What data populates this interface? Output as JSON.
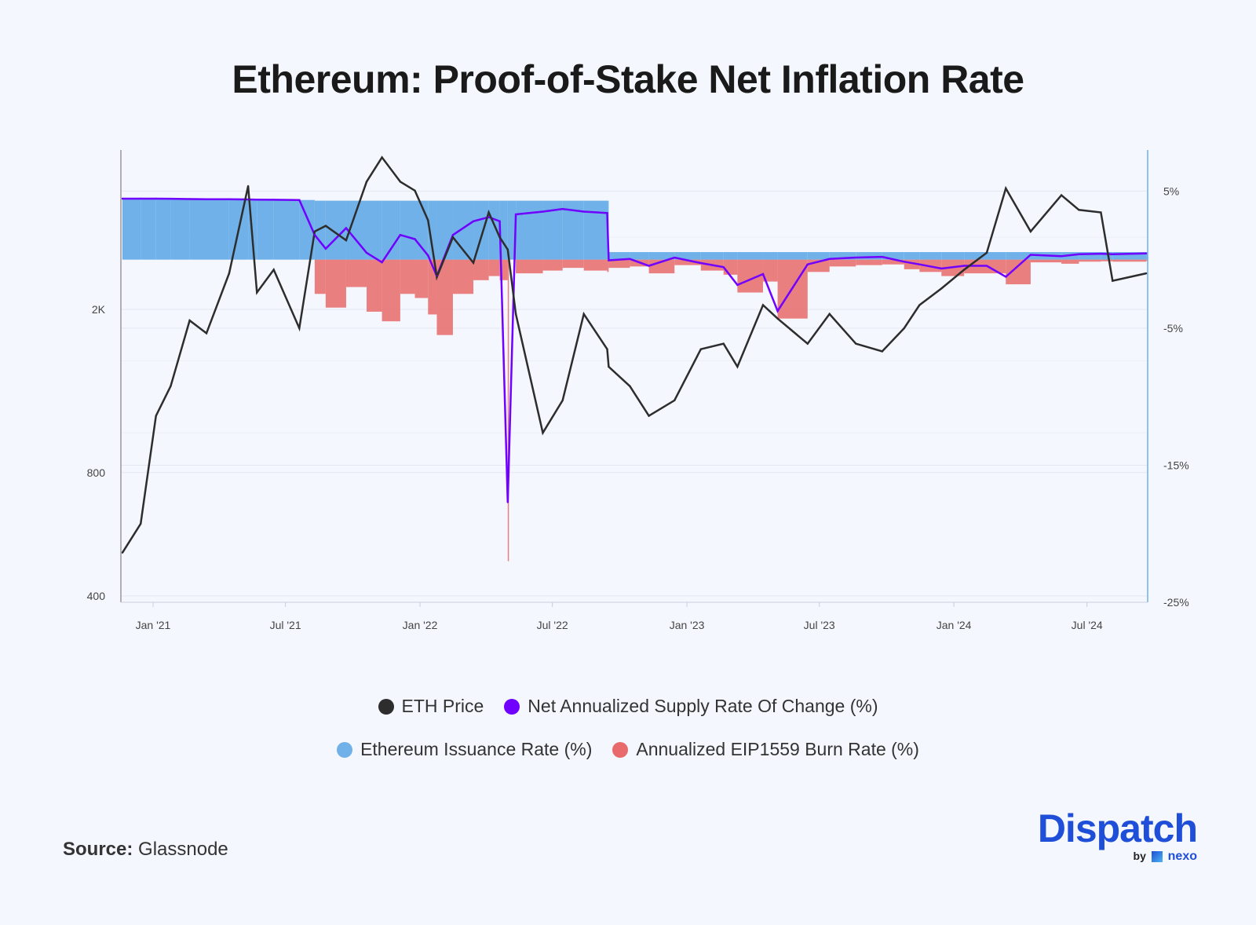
{
  "title": "Ethereum: Proof-of-Stake Net Inflation Rate",
  "source_label": "Source:",
  "source_value": "Glassnode",
  "logo": {
    "name": "Dispatch",
    "by": "by",
    "partner": "nexo"
  },
  "colors": {
    "price": "#2d2d2d",
    "net": "#7000ff",
    "issuance": "#6fb1e8",
    "burn": "#e86a6a",
    "brand": "#1f4fd8"
  },
  "legend": [
    {
      "label": "ETH Price",
      "color": "#2d2d2d"
    },
    {
      "label": "Net Annualized Supply Rate Of Change (%)",
      "color": "#7000ff"
    },
    {
      "label": "Ethereum Issuance Rate (%)",
      "color": "#6fb1e8"
    },
    {
      "label": "Annualized EIP1559 Burn Rate (%)",
      "color": "#e86a6a"
    }
  ],
  "chart_data": {
    "type": "line+bar",
    "title": "Ethereum: Proof-of-Stake Net Inflation Rate",
    "x_ticks": [
      {
        "date": "2021-01-01",
        "label": "Jan '21"
      },
      {
        "date": "2021-07-01",
        "label": "Jul '21"
      },
      {
        "date": "2022-01-01",
        "label": "Jan '22"
      },
      {
        "date": "2022-07-01",
        "label": "Jul '22"
      },
      {
        "date": "2023-01-01",
        "label": "Jan '23"
      },
      {
        "date": "2023-07-01",
        "label": "Jul '23"
      },
      {
        "date": "2024-01-01",
        "label": "Jan '24"
      },
      {
        "date": "2024-07-01",
        "label": "Jul '24"
      }
    ],
    "xlim": [
      "2020-11-18",
      "2024-09-22"
    ],
    "y_left": {
      "scale": "log",
      "range": [
        386,
        4900
      ],
      "ticks": [
        {
          "value": 400,
          "label": "400"
        },
        {
          "value": 800,
          "label": "800"
        },
        {
          "value": 2000,
          "label": "2K"
        }
      ]
    },
    "y_right": {
      "scale": "linear",
      "unit": "%",
      "range": [
        -25,
        8
      ],
      "ticks": [
        {
          "value": 5,
          "label": "5%"
        },
        {
          "value": -5,
          "label": "-5%"
        },
        {
          "value": -15,
          "label": "-15%"
        },
        {
          "value": -25,
          "label": "-25%"
        }
      ]
    },
    "grid": true,
    "legend_position": "bottom",
    "columns": [
      "date",
      "eth_price",
      "issuance_rate",
      "burn_rate",
      "net_rate"
    ],
    "rows": [
      [
        "2020-11-20",
        510,
        4.45,
        0,
        4.45
      ],
      [
        "2020-12-15",
        600,
        4.45,
        0,
        4.45
      ],
      [
        "2021-01-05",
        1100,
        4.45,
        0,
        4.45
      ],
      [
        "2021-01-25",
        1300,
        4.44,
        0,
        4.44
      ],
      [
        "2021-02-20",
        1880,
        4.42,
        0,
        4.42
      ],
      [
        "2021-03-15",
        1750,
        4.41,
        0,
        4.41
      ],
      [
        "2021-04-15",
        2450,
        4.4,
        0,
        4.4
      ],
      [
        "2021-05-11",
        4000,
        4.39,
        0,
        4.39
      ],
      [
        "2021-05-23",
        2200,
        4.38,
        0,
        4.38
      ],
      [
        "2021-06-15",
        2500,
        4.37,
        0,
        4.37
      ],
      [
        "2021-07-20",
        1800,
        4.35,
        0,
        4.35
      ],
      [
        "2021-08-10",
        3100,
        4.3,
        2.5,
        1.8
      ],
      [
        "2021-08-25",
        3200,
        4.3,
        3.5,
        0.8
      ],
      [
        "2021-09-22",
        2950,
        4.3,
        2.0,
        2.3
      ],
      [
        "2021-10-20",
        4100,
        4.3,
        3.8,
        0.5
      ],
      [
        "2021-11-10",
        4700,
        4.3,
        4.5,
        -0.2
      ],
      [
        "2021-12-05",
        4100,
        4.3,
        2.5,
        1.8
      ],
      [
        "2021-12-25",
        3900,
        4.3,
        2.8,
        1.5
      ],
      [
        "2022-01-12",
        3300,
        4.3,
        4.0,
        0.3
      ],
      [
        "2022-01-24",
        2400,
        4.3,
        5.5,
        -1.2
      ],
      [
        "2022-02-15",
        3000,
        4.3,
        2.5,
        1.8
      ],
      [
        "2022-03-15",
        2600,
        4.3,
        1.5,
        2.8
      ],
      [
        "2022-04-05",
        3450,
        4.3,
        1.2,
        3.1
      ],
      [
        "2022-04-20",
        3000,
        4.3,
        1.5,
        2.8
      ],
      [
        "2022-05-01",
        2800,
        4.3,
        22,
        -17.7
      ],
      [
        "2022-05-12",
        1950,
        4.3,
        1.0,
        3.3
      ],
      [
        "2022-06-18",
        1000,
        4.3,
        0.8,
        3.5
      ],
      [
        "2022-07-15",
        1200,
        4.3,
        0.6,
        3.7
      ],
      [
        "2022-08-13",
        1950,
        4.3,
        0.8,
        3.5
      ],
      [
        "2022-09-14",
        1600,
        4.3,
        0.9,
        3.4
      ],
      [
        "2022-09-16",
        1450,
        0.55,
        0.6,
        -0.05
      ],
      [
        "2022-10-15",
        1300,
        0.55,
        0.5,
        0.05
      ],
      [
        "2022-11-10",
        1100,
        0.55,
        1.0,
        -0.45
      ],
      [
        "2022-12-15",
        1200,
        0.55,
        0.4,
        0.15
      ],
      [
        "2023-01-20",
        1600,
        0.55,
        0.8,
        -0.25
      ],
      [
        "2023-02-20",
        1650,
        0.55,
        1.1,
        -0.55
      ],
      [
        "2023-03-11",
        1450,
        0.55,
        2.4,
        -1.85
      ],
      [
        "2023-04-15",
        2050,
        0.55,
        1.6,
        -1.05
      ],
      [
        "2023-05-05",
        1900,
        0.55,
        4.3,
        -3.75
      ],
      [
        "2023-06-15",
        1650,
        0.55,
        0.9,
        -0.35
      ],
      [
        "2023-07-15",
        1950,
        0.55,
        0.5,
        0.05
      ],
      [
        "2023-08-20",
        1650,
        0.55,
        0.4,
        0.15
      ],
      [
        "2023-09-25",
        1580,
        0.55,
        0.35,
        0.2
      ],
      [
        "2023-10-25",
        1800,
        0.55,
        0.7,
        -0.15
      ],
      [
        "2023-11-15",
        2050,
        0.55,
        0.9,
        -0.35
      ],
      [
        "2023-12-15",
        2250,
        0.55,
        1.2,
        -0.65
      ],
      [
        "2024-01-15",
        2500,
        0.55,
        1.0,
        -0.45
      ],
      [
        "2024-02-15",
        2750,
        0.55,
        1.0,
        -0.45
      ],
      [
        "2024-03-12",
        3950,
        0.55,
        1.8,
        -1.25
      ],
      [
        "2024-04-15",
        3100,
        0.55,
        0.2,
        0.35
      ],
      [
        "2024-05-27",
        3800,
        0.55,
        0.3,
        0.25
      ],
      [
        "2024-06-20",
        3500,
        0.55,
        0.15,
        0.4
      ],
      [
        "2024-07-20",
        3450,
        0.55,
        0.12,
        0.43
      ],
      [
        "2024-08-05",
        2350,
        0.55,
        0.15,
        0.4
      ],
      [
        "2024-09-20",
        2450,
        0.55,
        0.1,
        0.45
      ]
    ]
  }
}
